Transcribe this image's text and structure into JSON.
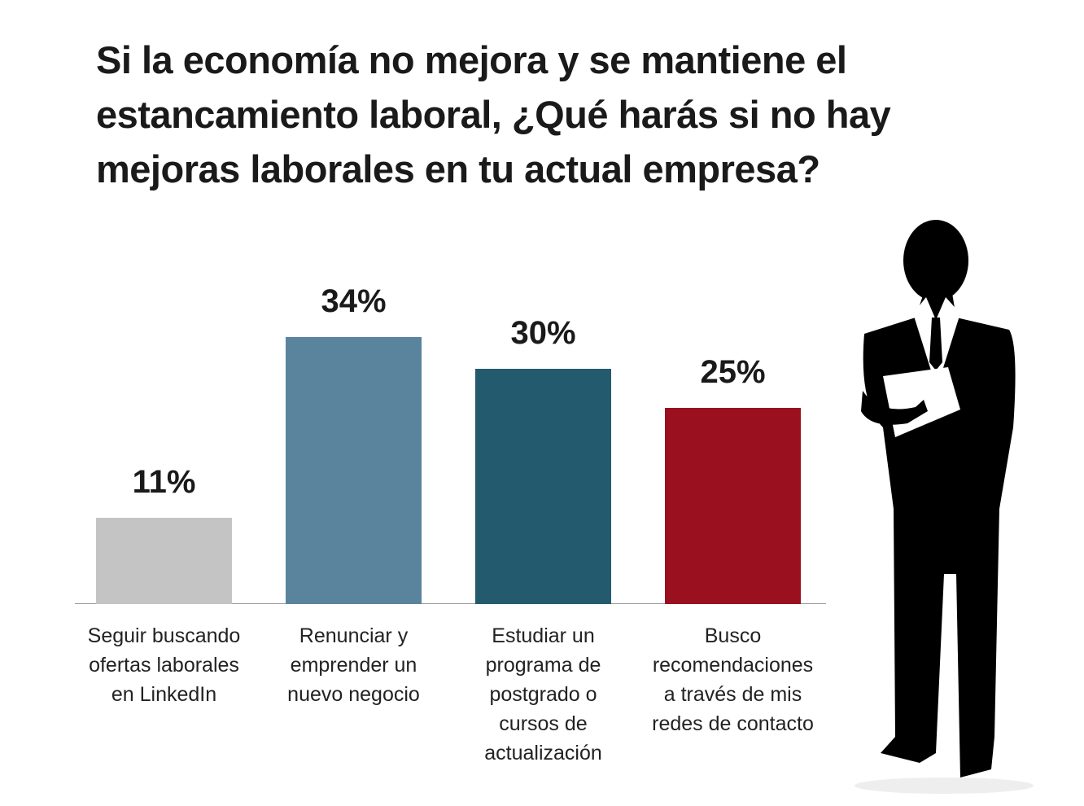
{
  "chart_data": {
    "type": "bar",
    "title": "Si la economía no mejora y se mantiene el\nestancamiento laboral, ¿Qué harás si no hay\nmejoras laborales en tu actual empresa?",
    "categories": [
      "Seguir buscando\nofertas laborales\nen LinkedIn",
      "Renunciar y\nemprender un\nnuevo negocio",
      "Estudiar un\nprograma de\npostgrado o\ncursos de\nactualización",
      "Busco\nrecomendaciones\na través de mis\nredes de contacto"
    ],
    "values": [
      11,
      34,
      30,
      25
    ],
    "value_labels": [
      "11%",
      "34%",
      "30%",
      "25%"
    ],
    "colors": [
      "#c4c4c4",
      "#5a849e",
      "#245a6e",
      "#9b101e"
    ]
  }
}
